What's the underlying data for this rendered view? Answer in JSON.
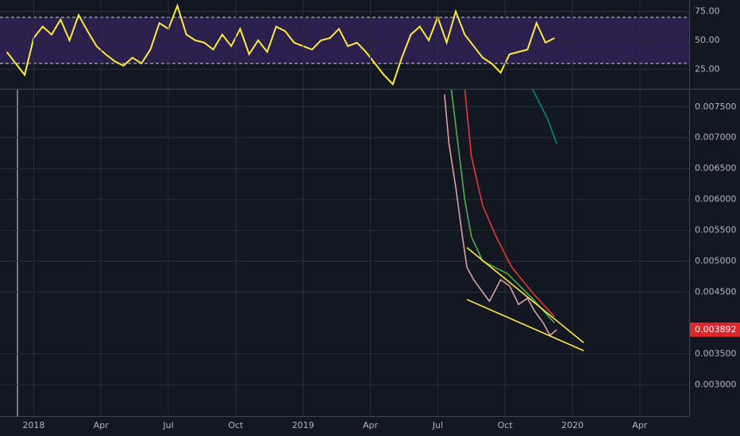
{
  "chart_data": [
    {
      "type": "line",
      "ylim": [
        8,
        85
      ],
      "yticks": [
        {
          "value": 25,
          "label": "25.00"
        },
        {
          "value": 50,
          "label": "50.00"
        },
        {
          "value": 75,
          "label": "75.00"
        }
      ],
      "band": [
        30,
        70
      ],
      "band_color": "#2a1f4d",
      "xlim": [
        -1.5,
        29.2
      ],
      "series": [
        {
          "color": "#ffeb3b",
          "x": [
            -1.2,
            -0.8,
            -0.4,
            0,
            0.4,
            0.8,
            1.2,
            1.6,
            2,
            2.4,
            2.8,
            3.2,
            3.6,
            4,
            4.4,
            4.8,
            5.2,
            5.6,
            6,
            6.4,
            6.8,
            7.2,
            7.6,
            8,
            8.4,
            8.8,
            9.2,
            9.6,
            10,
            10.4,
            10.8,
            11.2,
            11.6,
            12,
            12.4,
            12.8,
            13.2,
            13.6,
            14,
            14.4,
            14.8,
            15.2,
            15.6,
            16,
            16.4,
            16.8,
            17.2,
            17.6,
            18,
            18.4,
            18.8,
            19.2,
            19.6,
            20,
            20.4,
            20.8,
            21.2,
            21.6,
            22,
            22.4,
            22.8,
            23.2
          ],
          "values": [
            40,
            30,
            20,
            52,
            62,
            55,
            68,
            50,
            72,
            58,
            45,
            38,
            32,
            28,
            35,
            30,
            42,
            65,
            60,
            80,
            55,
            50,
            48,
            42,
            55,
            45,
            60,
            38,
            50,
            40,
            62,
            58,
            48,
            45,
            42,
            50,
            52,
            60,
            45,
            48,
            40,
            30,
            20,
            12,
            35,
            55,
            62,
            50,
            70,
            48,
            75,
            55,
            45,
            35,
            30,
            22,
            38,
            40,
            42,
            65,
            48,
            52
          ]
        }
      ],
      "grid": true
    },
    {
      "type": "line",
      "ylim": [
        0.00249,
        0.00778
      ],
      "yticks": [
        {
          "value": 0.003,
          "label": "0.003000"
        },
        {
          "value": 0.0035,
          "label": "0.003500"
        },
        {
          "value": 0.0045,
          "label": "0.004500"
        },
        {
          "value": 0.005,
          "label": "0.005000"
        },
        {
          "value": 0.0055,
          "label": "0.005500"
        },
        {
          "value": 0.006,
          "label": "0.006000"
        },
        {
          "value": 0.0065,
          "label": "0.006500"
        },
        {
          "value": 0.007,
          "label": "0.007000"
        },
        {
          "value": 0.0075,
          "label": "0.007500"
        }
      ],
      "xlim": [
        -1.5,
        29.2
      ],
      "xticks": [
        {
          "value": 0,
          "label": "2018"
        },
        {
          "value": 3,
          "label": "Apr"
        },
        {
          "value": 6,
          "label": "Jul"
        },
        {
          "value": 9,
          "label": "Oct"
        },
        {
          "value": 12,
          "label": "2019"
        },
        {
          "value": 15,
          "label": "Apr"
        },
        {
          "value": 18,
          "label": "Jul"
        },
        {
          "value": 21,
          "label": "Oct"
        },
        {
          "value": 24,
          "label": "2020"
        },
        {
          "value": 27,
          "label": "Apr"
        }
      ],
      "series": [
        {
          "color": "#d9a3a3",
          "x": [
            18.3,
            18.5,
            18.8,
            19.1,
            19.3,
            19.6,
            20,
            20.3,
            20.8,
            21.2,
            21.6,
            22,
            22.3,
            22.7,
            23,
            23.3
          ],
          "values": [
            0.0077,
            0.0069,
            0.0062,
            0.0054,
            0.0049,
            0.0047,
            0.0045,
            0.00435,
            0.0047,
            0.0046,
            0.0043,
            0.0044,
            0.0042,
            0.004,
            0.0038,
            0.00389
          ]
        },
        {
          "color": "#4caf50",
          "x": [
            18.6,
            19.2,
            19.5,
            20,
            21.1,
            22.2,
            23.2
          ],
          "values": [
            0.0078,
            0.006,
            0.0054,
            0.005,
            0.0048,
            0.0044,
            0.004
          ]
        },
        {
          "color": "#e53935",
          "x": [
            19.2,
            19.5,
            20,
            20.6,
            21.3,
            22.2,
            23.2
          ],
          "values": [
            0.0078,
            0.0067,
            0.0059,
            0.0054,
            0.0049,
            0.0045,
            0.0041
          ]
        },
        {
          "color": "#00897b",
          "x": [
            22.2,
            22.9,
            23.3
          ],
          "values": [
            0.0078,
            0.0073,
            0.0069
          ]
        },
        {
          "color": "#ffeb3b",
          "x": [
            19.3,
            24.5
          ],
          "values": [
            0.00522,
            0.00368
          ]
        },
        {
          "color": "#ffeb3b",
          "x": [
            19.3,
            24.5
          ],
          "values": [
            0.00438,
            0.00355
          ]
        }
      ],
      "last_value": 0.003892,
      "last_color": "#e0262b",
      "grid": true
    }
  ]
}
